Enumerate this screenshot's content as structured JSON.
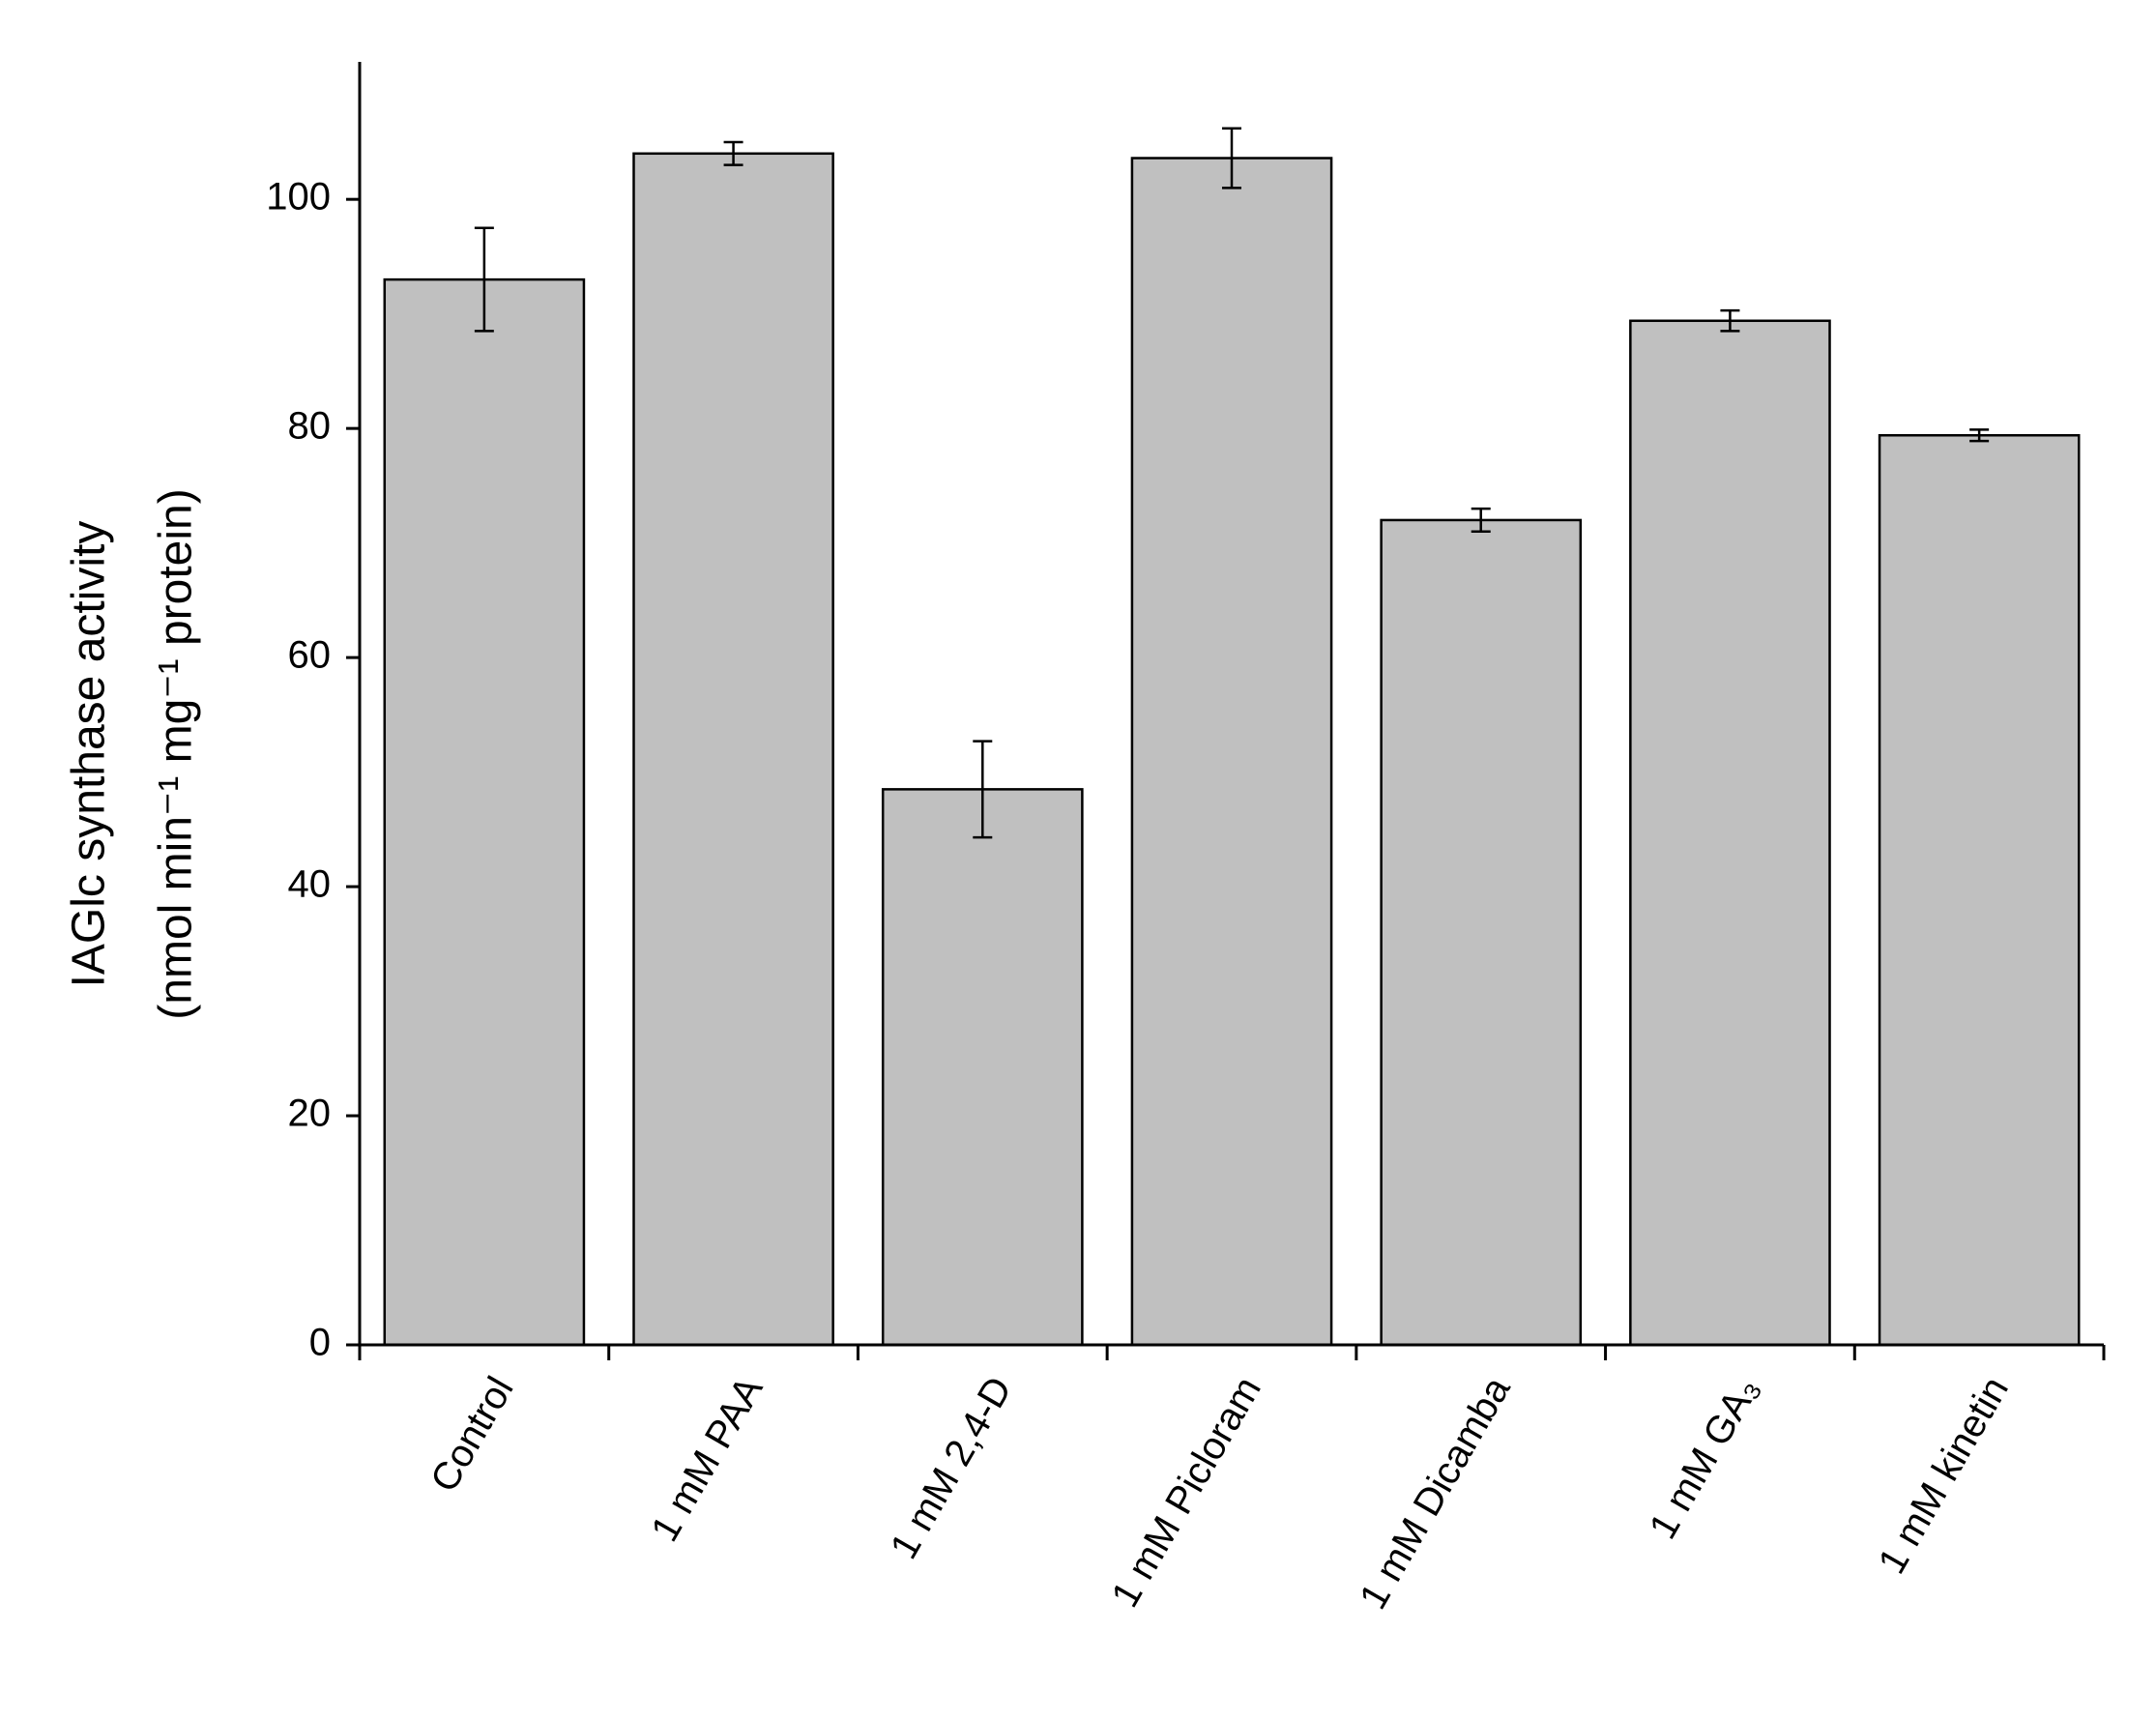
{
  "chart_data": {
    "type": "bar",
    "y_label": [
      "IAGlc synthase activity",
      "(nmol min⁻¹ mg⁻¹ protein)"
    ],
    "categories": [
      "Control",
      "1 mM PAA",
      "1 mM 2,4-D",
      "1 mM Picloram",
      "1 mM Dicamba",
      "1 mM GA₃",
      "1 mM kinetin"
    ],
    "values": [
      93.0,
      104.0,
      48.5,
      103.6,
      72.0,
      89.4,
      79.4
    ],
    "errors": [
      4.5,
      1.0,
      4.2,
      2.6,
      1.0,
      0.9,
      0.5
    ],
    "color": "#c0c0c0",
    "ylim": [
      0,
      112
    ],
    "yticks": [
      0,
      20,
      40,
      60,
      80,
      100
    ],
    "grid": false
  }
}
